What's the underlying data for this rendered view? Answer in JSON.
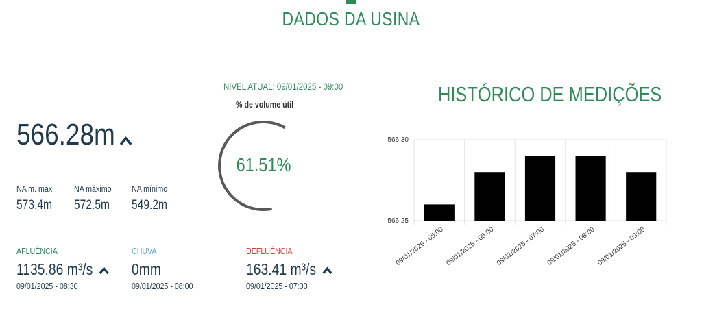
{
  "header": {
    "title": "DADOS DA USINA"
  },
  "level": {
    "value": "566.28m",
    "trend_icon": "chevron-up-icon",
    "stats": [
      {
        "label": "NA m. max",
        "value": "573.4m"
      },
      {
        "label": "NA máximo",
        "value": "572.5m"
      },
      {
        "label": "NA mínimo",
        "value": "549.2m"
      }
    ]
  },
  "gauge": {
    "caption": "NÍVEL ATUAL: 09/01/2025 - 09:00",
    "subtitle": "% de volume útil",
    "value_label": "61.51%",
    "percent": 61.51
  },
  "flows": {
    "afluencia": {
      "label": "AFLUÊNCIA",
      "value": "1135.86 m³/s",
      "date": "09/01/2025 - 08:30",
      "color": "#2e8b57",
      "trend_icon": "chevron-up-icon"
    },
    "chuva": {
      "label": "CHUVA",
      "value": "0mm",
      "date": "09/01/2025 - 08:00",
      "color": "#5aa6d6"
    },
    "defluencia": {
      "label": "DEFLUÊNCIA",
      "value": "163.41 m³/s",
      "date": "09/01/2025 - 07:00",
      "color": "#d93a3a",
      "trend_icon": "chevron-up-icon"
    }
  },
  "history": {
    "title": "HISTÓRICO DE MEDIÇÕES"
  },
  "chart_data": {
    "type": "bar",
    "categories": [
      "09/01/2025 - 05:00",
      "09/01/2025 - 06:00",
      "09/01/2025 - 07:00",
      "09/01/2025 - 08:00",
      "09/01/2025 - 09:00"
    ],
    "values": [
      566.26,
      566.28,
      566.29,
      566.29,
      566.28
    ],
    "yticks": [
      "566.30",
      "566.25"
    ],
    "ylim": [
      566.25,
      566.3
    ],
    "title": "",
    "xlabel": "",
    "ylabel": "",
    "grid": true,
    "bar_color": "#000000"
  }
}
